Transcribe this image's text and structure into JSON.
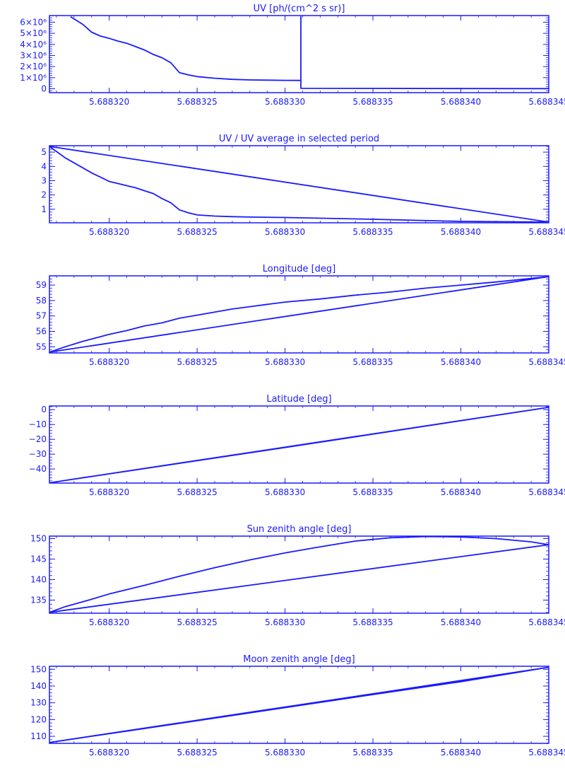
{
  "colors": {
    "line": "#1a1aff",
    "background": "#ffffff"
  },
  "chart_data": [
    {
      "type": "line",
      "title": "UV [ph/(cm^2 s sr)]",
      "xlabel": "",
      "ylabel": "",
      "xlim": [
        5.6883166,
        5.688345
      ],
      "ylim": [
        -350000,
        6600000
      ],
      "grid": false,
      "legend": "none",
      "x_ticks": [
        {
          "value": 5.68832,
          "label": "5.688320"
        },
        {
          "value": 5.688325,
          "label": "5.688325"
        },
        {
          "value": 5.68833,
          "label": "5.688330"
        },
        {
          "value": 5.688335,
          "label": "5.688335"
        },
        {
          "value": 5.68834,
          "label": "5.688340"
        },
        {
          "value": 5.688345,
          "label": "5.688345"
        }
      ],
      "y_ticks": [
        {
          "value": 0,
          "label": "0"
        },
        {
          "value": 1000000,
          "label": "1×10⁶"
        },
        {
          "value": 2000000,
          "label": "2×10⁶"
        },
        {
          "value": 3000000,
          "label": "3×10⁶"
        },
        {
          "value": 4000000,
          "label": "4×10⁶"
        },
        {
          "value": 5000000,
          "label": "5×10⁶"
        },
        {
          "value": 6000000,
          "label": "6×10⁶"
        }
      ],
      "series": [
        {
          "x": [
            5.6883178,
            5.6883185,
            5.688319,
            5.6883195,
            5.68832,
            5.6883205,
            5.688321,
            5.6883215,
            5.688322,
            5.6883225,
            5.688323,
            5.6883235,
            5.688324,
            5.6883245,
            5.688325,
            5.688326,
            5.688327,
            5.688328,
            5.688329,
            5.68833,
            5.6883309,
            5.6883309,
            5.6883309,
            5.688335,
            5.68834,
            5.688345
          ],
          "y": [
            6500000,
            5800000,
            5100000,
            4750000,
            4550000,
            4300000,
            4100000,
            3800000,
            3500000,
            3100000,
            2800000,
            2350000,
            1450000,
            1250000,
            1100000,
            950000,
            850000,
            800000,
            780000,
            760000,
            750000,
            6500000,
            40000,
            30000,
            20000,
            15000
          ]
        }
      ]
    },
    {
      "type": "line",
      "title": "UV / UV average in selected period",
      "xlabel": "",
      "ylabel": "",
      "xlim": [
        5.6883166,
        5.688345
      ],
      "ylim": [
        0.05,
        5.45
      ],
      "grid": false,
      "legend": "none",
      "x_ticks": [
        {
          "value": 5.68832,
          "label": "5.688320"
        },
        {
          "value": 5.688325,
          "label": "5.688325"
        },
        {
          "value": 5.68833,
          "label": "5.688330"
        },
        {
          "value": 5.688335,
          "label": "5.688335"
        },
        {
          "value": 5.68834,
          "label": "5.688340"
        },
        {
          "value": 5.688345,
          "label": "5.688345"
        }
      ],
      "y_ticks": [
        {
          "value": 1,
          "label": "1"
        },
        {
          "value": 2,
          "label": "2"
        },
        {
          "value": 3,
          "label": "3"
        },
        {
          "value": 4,
          "label": "4"
        },
        {
          "value": 5,
          "label": "5"
        }
      ],
      "series": [
        {
          "x": [
            5.6883166,
            5.6883175,
            5.6883185,
            5.688319,
            5.6883195,
            5.68832,
            5.6883205,
            5.688321,
            5.6883215,
            5.688322,
            5.6883225,
            5.688323,
            5.6883235,
            5.688324,
            5.6883245,
            5.688325,
            5.688326,
            5.688327,
            5.688328,
            5.68833,
            5.688335,
            5.68834,
            5.688345,
            5.6883166
          ],
          "y": [
            5.4,
            4.6,
            3.9,
            3.55,
            3.25,
            2.95,
            2.8,
            2.65,
            2.5,
            2.3,
            2.1,
            1.75,
            1.45,
            0.95,
            0.75,
            0.6,
            0.52,
            0.48,
            0.45,
            0.42,
            0.3,
            0.15,
            0.1,
            5.4
          ]
        }
      ]
    },
    {
      "type": "line",
      "title": "Longitude [deg]",
      "xlabel": "",
      "ylabel": "",
      "xlim": [
        5.6883166,
        5.688345
      ],
      "ylim": [
        54.6,
        59.6
      ],
      "grid": false,
      "legend": "none",
      "x_ticks": [
        {
          "value": 5.68832,
          "label": "5.688320"
        },
        {
          "value": 5.688325,
          "label": "5.688325"
        },
        {
          "value": 5.68833,
          "label": "5.688330"
        },
        {
          "value": 5.688335,
          "label": "5.688335"
        },
        {
          "value": 5.68834,
          "label": "5.688340"
        },
        {
          "value": 5.688345,
          "label": "5.688345"
        }
      ],
      "y_ticks": [
        {
          "value": 55,
          "label": "55"
        },
        {
          "value": 56,
          "label": "56"
        },
        {
          "value": 57,
          "label": "57"
        },
        {
          "value": 58,
          "label": "58"
        },
        {
          "value": 59,
          "label": "59"
        }
      ],
      "series": [
        {
          "x": [
            5.6883166,
            5.6883175,
            5.6883185,
            5.688319,
            5.68832,
            5.688321,
            5.688322,
            5.688323,
            5.688324,
            5.688325,
            5.688326,
            5.688327,
            5.688328,
            5.688329,
            5.68833,
            5.688332,
            5.688334,
            5.688336,
            5.688338,
            5.68834,
            5.688342,
            5.688345,
            5.6883166
          ],
          "y": [
            54.65,
            55.0,
            55.35,
            55.5,
            55.8,
            56.05,
            56.35,
            56.55,
            56.85,
            57.05,
            57.25,
            57.45,
            57.6,
            57.75,
            57.9,
            58.1,
            58.35,
            58.55,
            58.8,
            59.0,
            59.2,
            59.55,
            54.65
          ]
        }
      ]
    },
    {
      "type": "line",
      "title": "Latitude [deg]",
      "xlabel": "",
      "ylabel": "",
      "xlim": [
        5.6883166,
        5.688345
      ],
      "ylim": [
        -49.5,
        2.5
      ],
      "grid": false,
      "legend": "none",
      "x_ticks": [
        {
          "value": 5.68832,
          "label": "5.688320"
        },
        {
          "value": 5.688325,
          "label": "5.688325"
        },
        {
          "value": 5.68833,
          "label": "5.688330"
        },
        {
          "value": 5.688335,
          "label": "5.688335"
        },
        {
          "value": 5.68834,
          "label": "5.688340"
        },
        {
          "value": 5.688345,
          "label": "5.688345"
        }
      ],
      "y_ticks": [
        {
          "value": -40,
          "label": "−40"
        },
        {
          "value": -30,
          "label": "−30"
        },
        {
          "value": -20,
          "label": "−20"
        },
        {
          "value": -10,
          "label": "−10"
        },
        {
          "value": 0,
          "label": "0"
        }
      ],
      "series": [
        {
          "x": [
            5.6883166,
            5.68833,
            5.688345,
            5.6883166
          ],
          "y": [
            -49.3,
            -25.5,
            1.6,
            -49.3
          ]
        }
      ]
    },
    {
      "type": "line",
      "title": "Sun zenith angle [deg]",
      "xlabel": "",
      "ylabel": "",
      "xlim": [
        5.6883166,
        5.688345
      ],
      "ylim": [
        131.8,
        150.6
      ],
      "grid": false,
      "legend": "none",
      "x_ticks": [
        {
          "value": 5.68832,
          "label": "5.688320"
        },
        {
          "value": 5.688325,
          "label": "5.688325"
        },
        {
          "value": 5.68833,
          "label": "5.688330"
        },
        {
          "value": 5.688335,
          "label": "5.688335"
        },
        {
          "value": 5.68834,
          "label": "5.688340"
        },
        {
          "value": 5.688345,
          "label": "5.688345"
        }
      ],
      "y_ticks": [
        {
          "value": 135,
          "label": "135"
        },
        {
          "value": 140,
          "label": "140"
        },
        {
          "value": 145,
          "label": "145"
        },
        {
          "value": 150,
          "label": "150"
        }
      ],
      "series": [
        {
          "x": [
            5.6883166,
            5.6883175,
            5.688319,
            5.68832,
            5.688322,
            5.688324,
            5.688326,
            5.688328,
            5.68833,
            5.688332,
            5.688334,
            5.688336,
            5.688338,
            5.68834,
            5.688342,
            5.688344,
            5.688345,
            5.6883166
          ],
          "y": [
            132.0,
            133.4,
            135.2,
            136.5,
            138.6,
            140.8,
            142.9,
            144.8,
            146.5,
            148.0,
            149.4,
            150.2,
            150.5,
            150.4,
            150.0,
            149.2,
            148.5,
            132.0
          ]
        }
      ]
    },
    {
      "type": "line",
      "title": "Moon zenith angle [deg]",
      "xlabel": "",
      "ylabel": "",
      "xlim": [
        5.6883166,
        5.688345
      ],
      "ylim": [
        105.8,
        151.8
      ],
      "grid": false,
      "legend": "none",
      "x_ticks": [
        {
          "value": 5.68832,
          "label": "5.688320"
        },
        {
          "value": 5.688325,
          "label": "5.688325"
        },
        {
          "value": 5.68833,
          "label": "5.688330"
        },
        {
          "value": 5.688335,
          "label": "5.688335"
        },
        {
          "value": 5.68834,
          "label": "5.688340"
        },
        {
          "value": 5.688345,
          "label": "5.688345"
        }
      ],
      "y_ticks": [
        {
          "value": 110,
          "label": "110"
        },
        {
          "value": 120,
          "label": "120"
        },
        {
          "value": 130,
          "label": "130"
        },
        {
          "value": 140,
          "label": "140"
        },
        {
          "value": 150,
          "label": "150"
        }
      ],
      "series": [
        {
          "x": [
            5.6883166,
            5.68832,
            5.688325,
            5.68833,
            5.688335,
            5.68834,
            5.688345,
            5.6883166
          ],
          "y": [
            106.3,
            111.6,
            119.3,
            127.1,
            134.9,
            142.6,
            151.2,
            106.3
          ]
        }
      ]
    }
  ]
}
